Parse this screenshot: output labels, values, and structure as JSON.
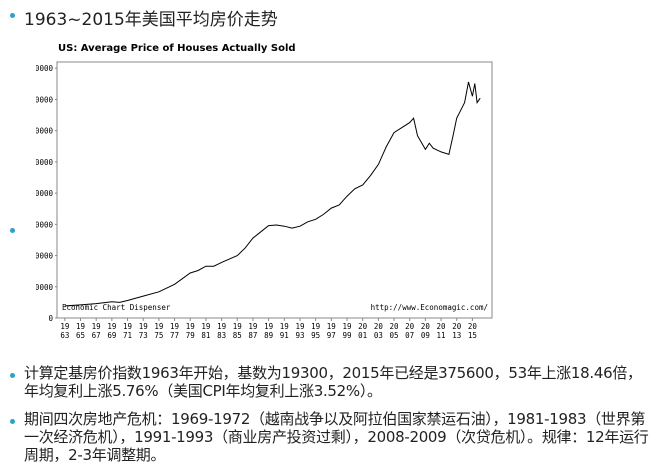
{
  "slide": {
    "title": "1963~2015年美国平均房价走势",
    "bullets": [
      "计算定基房价指数1963年开始，基数为19300，2015年已经是375600，53年上涨18.46倍，年均复利上涨5.76%（美国CPI年均复利上涨3.52%）。",
      "期间四次房地产危机：1969-1972（越南战争以及阿拉伯国家禁运石油），1981-1983（世界第一次经济危机），1991-1993（商业房产投资过剩），2008-2009（次贷危机）。规律：12年运行周期，2-3年调整期。"
    ]
  },
  "chart_data": {
    "type": "line",
    "title": "US: Average Price of Houses Actually Sold",
    "annotations": [
      "Economic Chart Dispenser",
      "http://www.Economagic.com/"
    ],
    "color": "#000000",
    "x": [
      1963,
      1965,
      1967,
      1969,
      1970,
      1971,
      1973,
      1975,
      1977,
      1979,
      1980,
      1981,
      1982,
      1983,
      1985,
      1986,
      1987,
      1988,
      1989,
      1990,
      1991,
      1992,
      1993,
      1994,
      1995,
      1996,
      1997,
      1998,
      1999,
      2000,
      2001,
      2002,
      2003,
      2004,
      2005,
      2006,
      2007,
      2007.5,
      2008,
      2009,
      2009.5,
      2010,
      2011,
      2012,
      2012.5,
      2013,
      2014,
      2014.5,
      2015,
      2015.3,
      2015.6,
      2016
    ],
    "values": [
      19300,
      21000,
      23000,
      26000,
      25000,
      28000,
      35000,
      42000,
      54000,
      72000,
      76000,
      83000,
      83000,
      89000,
      100000,
      112000,
      128000,
      138000,
      148000,
      149000,
      147000,
      144000,
      147000,
      154000,
      158000,
      166000,
      176000,
      181000,
      195000,
      207000,
      213000,
      228000,
      246000,
      274000,
      297000,
      305000,
      313000,
      320000,
      292000,
      270000,
      280000,
      272000,
      266000,
      262000,
      290000,
      320000,
      345000,
      378000,
      355000,
      375600,
      345000,
      352000
    ],
    "xlim": [
      1962,
      2017.5
    ],
    "xticks": [
      {
        "value": 1963,
        "label": "1963"
      },
      {
        "value": 1965,
        "label": "1965"
      },
      {
        "value": 1967,
        "label": "1967"
      },
      {
        "value": 1969,
        "label": "1969"
      },
      {
        "value": 1971,
        "label": "1971"
      },
      {
        "value": 1973,
        "label": "1973"
      },
      {
        "value": 1975,
        "label": "1975"
      },
      {
        "value": 1977,
        "label": "1977"
      },
      {
        "value": 1979,
        "label": "1979"
      },
      {
        "value": 1981,
        "label": "1981"
      },
      {
        "value": 1983,
        "label": "1983"
      },
      {
        "value": 1985,
        "label": "1985"
      },
      {
        "value": 1987,
        "label": "1987"
      },
      {
        "value": 1989,
        "label": "1989"
      },
      {
        "value": 1991,
        "label": "1991"
      },
      {
        "value": 1993,
        "label": "1993"
      },
      {
        "value": 1995,
        "label": "1995"
      },
      {
        "value": 1997,
        "label": "1997"
      },
      {
        "value": 1999,
        "label": "1999"
      },
      {
        "value": 2001,
        "label": "2001"
      },
      {
        "value": 2003,
        "label": "2003"
      },
      {
        "value": 2005,
        "label": "2005"
      },
      {
        "value": 2007,
        "label": "2007"
      },
      {
        "value": 2009,
        "label": "2009"
      },
      {
        "value": 2011,
        "label": "2011"
      },
      {
        "value": 2013,
        "label": "2013"
      },
      {
        "value": 2015,
        "label": "2015"
      }
    ],
    "ylim": [
      0,
      410000
    ],
    "yticks": [
      0,
      50000,
      100000,
      150000,
      200000,
      250000,
      300000,
      350000,
      400000
    ]
  }
}
